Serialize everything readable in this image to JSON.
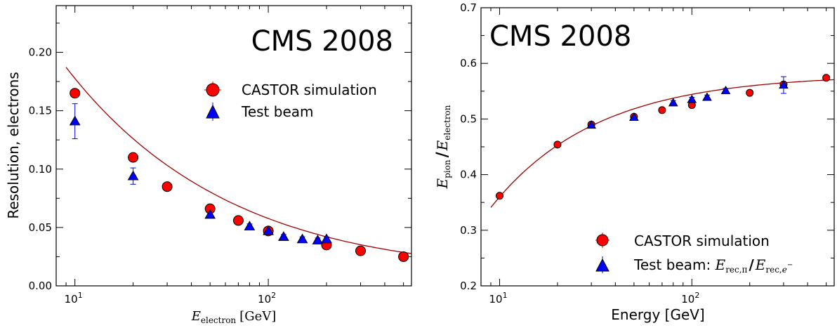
{
  "chart_data": [
    {
      "type": "scatter",
      "panel": "left",
      "annotation": "CMS 2008",
      "xlabel_base": "E",
      "xlabel_sub": "electron",
      "xlabel_unit": "[GeV]",
      "ylabel": "Resolution, electrons",
      "xscale": "log",
      "xlim": [
        8,
        550
      ],
      "ylim": [
        0.0,
        0.24
      ],
      "x_ticks": [
        10,
        100
      ],
      "x_tick_labels": [
        {
          "base": "10",
          "exp": "1"
        },
        {
          "base": "10",
          "exp": "2"
        }
      ],
      "y_ticks": [
        0.0,
        0.05,
        0.1,
        0.15,
        0.2
      ],
      "y_tick_labels": [
        "0.00",
        "0.05",
        "0.10",
        "0.15",
        "0.20"
      ],
      "grid": false,
      "legend_position": "upper-right",
      "fit_curve": {
        "form": "sqrt((a/sqrt(E))^2 + b^2)",
        "a": 0.56,
        "b": 0.014,
        "x_range": [
          9,
          550
        ]
      },
      "series": [
        {
          "name": "CASTOR simulation",
          "marker": "circle",
          "color": "#ff0000",
          "points": [
            {
              "x": 10,
              "y": 0.165
            },
            {
              "x": 20,
              "y": 0.11
            },
            {
              "x": 30,
              "y": 0.085
            },
            {
              "x": 50,
              "y": 0.066
            },
            {
              "x": 70,
              "y": 0.056
            },
            {
              "x": 100,
              "y": 0.047
            },
            {
              "x": 200,
              "y": 0.035
            },
            {
              "x": 300,
              "y": 0.03
            },
            {
              "x": 500,
              "y": 0.025
            }
          ]
        },
        {
          "name": "Test beam",
          "marker": "triangle",
          "color": "#0000ff",
          "points": [
            {
              "x": 10,
              "y": 0.141,
              "err": 0.015
            },
            {
              "x": 20,
              "y": 0.094,
              "err": 0.007
            },
            {
              "x": 50,
              "y": 0.061,
              "err": 0.002
            },
            {
              "x": 80,
              "y": 0.051,
              "err": 0.002
            },
            {
              "x": 100,
              "y": 0.047,
              "err": 0.002
            },
            {
              "x": 120,
              "y": 0.042,
              "err": 0.002
            },
            {
              "x": 150,
              "y": 0.04,
              "err": 0.002
            },
            {
              "x": 180,
              "y": 0.039,
              "err": 0.002
            },
            {
              "x": 200,
              "y": 0.04,
              "err": 0.002
            }
          ]
        }
      ]
    },
    {
      "type": "scatter",
      "panel": "right",
      "annotation": "CMS 2008",
      "xlabel": "Energy  [GeV]",
      "ylabel_num_base": "E",
      "ylabel_num_sub": "pion",
      "ylabel_den_base": "E",
      "ylabel_den_sub": "electron",
      "xscale": "log",
      "xlim": [
        8,
        550
      ],
      "ylim": [
        0.2,
        0.7
      ],
      "x_ticks": [
        10,
        100
      ],
      "x_tick_labels": [
        {
          "base": "10",
          "exp": "1"
        },
        {
          "base": "10",
          "exp": "2"
        }
      ],
      "y_ticks": [
        0.2,
        0.3,
        0.4,
        0.5,
        0.6,
        0.7
      ],
      "y_tick_labels": [
        "0.2",
        "0.3",
        "0.4",
        "0.5",
        "0.6",
        "0.7"
      ],
      "grid": false,
      "legend_position": "lower-right",
      "fit_curve": {
        "form": "0.58 - 0.22*exp(-(log10(E)-1)/0.55)",
        "x_range": [
          9,
          550
        ]
      },
      "series": [
        {
          "name": "CASTOR simulation",
          "marker": "circle",
          "color": "#ff0000",
          "points": [
            {
              "x": 10,
              "y": 0.362
            },
            {
              "x": 20,
              "y": 0.454
            },
            {
              "x": 30,
              "y": 0.49
            },
            {
              "x": 50,
              "y": 0.504
            },
            {
              "x": 70,
              "y": 0.516
            },
            {
              "x": 100,
              "y": 0.525
            },
            {
              "x": 200,
              "y": 0.547
            },
            {
              "x": 300,
              "y": 0.562
            },
            {
              "x": 500,
              "y": 0.574
            }
          ]
        },
        {
          "name_text": "Test beam: ",
          "name_math_num_base": "E",
          "name_math_num_sub": "rec,π",
          "name_math_den_base": "E",
          "name_math_den_sub": "rec,",
          "name_math_den_sub_e": "e",
          "name_math_den_sup": "−",
          "marker": "triangle",
          "color": "#0000ff",
          "points": [
            {
              "x": 30,
              "y": 0.489,
              "err": 0.004
            },
            {
              "x": 50,
              "y": 0.503,
              "err": 0.004
            },
            {
              "x": 80,
              "y": 0.529,
              "err": 0.004
            },
            {
              "x": 100,
              "y": 0.535,
              "err": 0.004
            },
            {
              "x": 120,
              "y": 0.539,
              "err": 0.004
            },
            {
              "x": 150,
              "y": 0.551,
              "err": 0.004
            },
            {
              "x": 300,
              "y": 0.561,
              "err": 0.015
            }
          ]
        }
      ]
    }
  ]
}
